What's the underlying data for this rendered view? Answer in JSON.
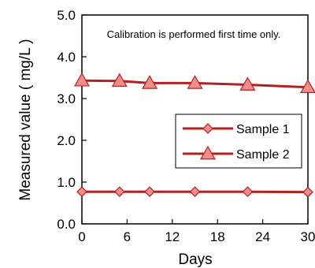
{
  "colors": {
    "line": "#B22222",
    "marker_fill": "#F08C8C",
    "marker_stroke": "#B22222",
    "axis": "#000000",
    "background": "#ffffff"
  },
  "chart_data": {
    "type": "line",
    "title": "",
    "xlabel": "Days",
    "ylabel": "Measured value ( mg/L )",
    "annotation": "Calibration is performed first time only.",
    "xlim": [
      0,
      30
    ],
    "ylim": [
      0,
      5
    ],
    "xticks": [
      0,
      6,
      12,
      18,
      24,
      30
    ],
    "xtick_labels": [
      "0",
      "6",
      "12",
      "18",
      "24",
      "30"
    ],
    "yticks": [
      0,
      1,
      2,
      3,
      4,
      5
    ],
    "ytick_labels": [
      "0.0",
      "1.0",
      "2.0",
      "3.0",
      "4.0",
      "5.0"
    ],
    "grid": false,
    "legend_position": "center-right",
    "series": [
      {
        "name": "Sample 1",
        "marker": "diamond",
        "x": [
          0,
          5,
          9,
          15,
          22,
          30
        ],
        "y": [
          0.77,
          0.77,
          0.77,
          0.77,
          0.77,
          0.76
        ]
      },
      {
        "name": "Sample 2",
        "marker": "triangle",
        "x": [
          0,
          5,
          9,
          15,
          22,
          30
        ],
        "y": [
          3.43,
          3.42,
          3.37,
          3.37,
          3.33,
          3.27
        ]
      }
    ]
  }
}
